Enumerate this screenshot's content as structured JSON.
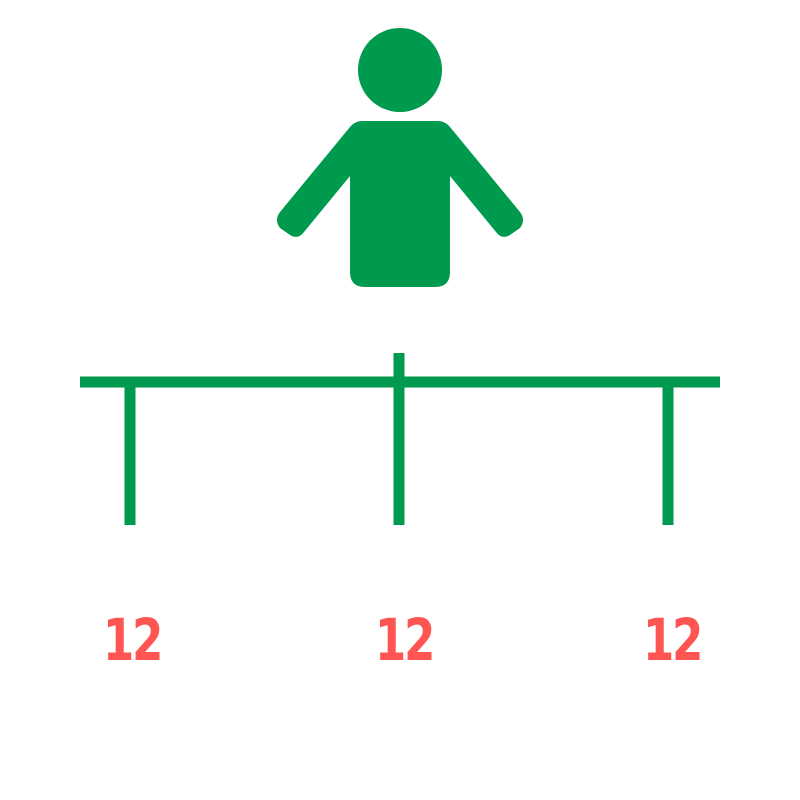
{
  "diagram": {
    "root_icon": "person-icon",
    "branch_color": "#009a4e",
    "label_color": "#ff5552",
    "leaves": [
      {
        "label": "12"
      },
      {
        "label": "12"
      },
      {
        "label": "12"
      }
    ]
  }
}
